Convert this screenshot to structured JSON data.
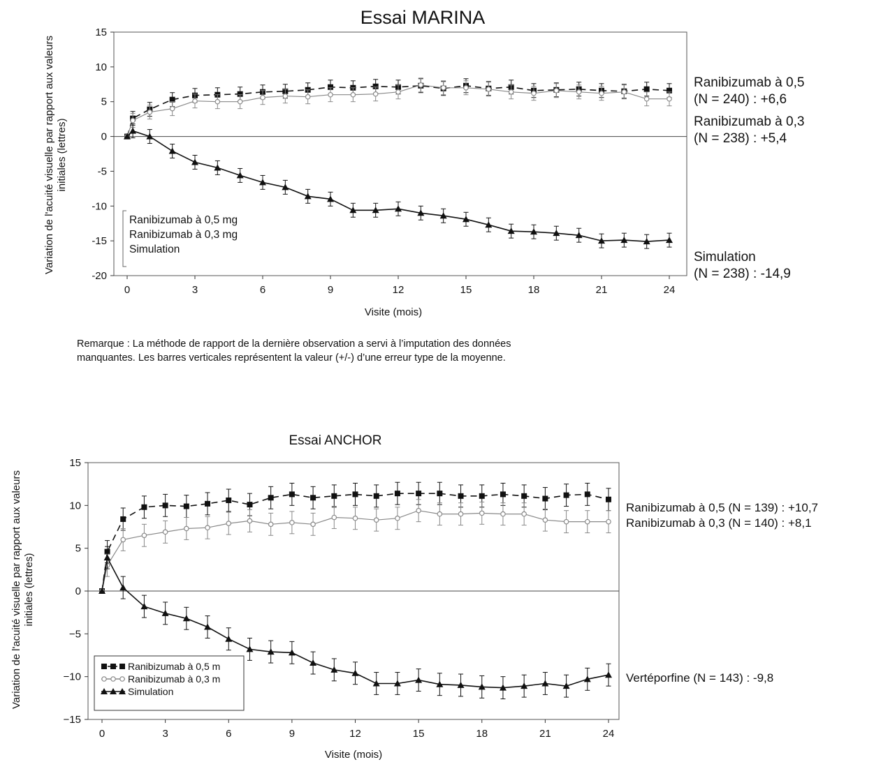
{
  "chart_data": [
    {
      "type": "line",
      "title": "Essai MARINA",
      "xlabel": "Visite (mois)",
      "ylabel": "Variation de l'acuité visuelle par rapport aux valeurs initiales (lettres)",
      "xlim": [
        0,
        24
      ],
      "ylim": [
        -20,
        15
      ],
      "xticks": [
        0,
        3,
        6,
        9,
        12,
        15,
        18,
        21,
        24
      ],
      "yticks": [
        15,
        10,
        5,
        0,
        -5,
        -10,
        -15,
        -20
      ],
      "legend_position": "bottom-left",
      "legend": [
        "Ranibizumab à 0,5 mg",
        "Ranibizumab à 0,3 mg",
        "Simulation"
      ],
      "x": [
        0,
        0.25,
        1,
        2,
        3,
        4,
        5,
        6,
        7,
        8,
        9,
        10,
        11,
        12,
        13,
        14,
        15,
        16,
        17,
        18,
        19,
        20,
        21,
        22,
        23,
        24
      ],
      "error_bar": 1.0,
      "series": [
        {
          "name": "Ranibizumab à 0,5 mg",
          "style": "dash-square",
          "color": "#111111",
          "values": [
            0,
            2.6,
            3.9,
            5.3,
            5.9,
            6.0,
            6.1,
            6.4,
            6.5,
            6.7,
            7.1,
            7.0,
            7.2,
            7.1,
            7.3,
            6.9,
            7.3,
            6.9,
            7.1,
            6.6,
            6.7,
            6.8,
            6.6,
            6.5,
            6.8,
            6.6
          ]
        },
        {
          "name": "Ranibizumab à 0,3 mg",
          "style": "solid-diamond",
          "color": "#888888",
          "values": [
            0,
            2.3,
            3.5,
            4.0,
            5.1,
            5.0,
            5.0,
            5.6,
            5.8,
            5.7,
            6.0,
            6.0,
            6.1,
            6.4,
            7.4,
            7.0,
            7.0,
            6.8,
            6.4,
            6.2,
            6.6,
            6.4,
            6.2,
            6.4,
            5.4,
            5.4
          ]
        },
        {
          "name": "Simulation",
          "style": "solid-triangle",
          "color": "#111111",
          "values": [
            0,
            0.8,
            0,
            -2.1,
            -3.7,
            -4.5,
            -5.6,
            -6.6,
            -7.3,
            -8.6,
            -9.0,
            -10.6,
            -10.6,
            -10.4,
            -11.0,
            -11.4,
            -11.9,
            -12.7,
            -13.6,
            -13.7,
            -13.9,
            -14.2,
            -15.0,
            -14.9,
            -15.1,
            -14.9
          ]
        }
      ],
      "annotations": [
        {
          "text": "Ranibizumab à 0,5",
          "line2": "(N = 240) : +6,6"
        },
        {
          "text": "Ranibizumab à 0,3",
          "line2": "(N = 238) : +5,4"
        },
        {
          "text": "Simulation",
          "line2": "(N = 238) : -14,9"
        }
      ]
    },
    {
      "type": "line",
      "title": "Essai ANCHOR",
      "xlabel": "Visite (mois)",
      "ylabel": "Variation de l'acuité visuelle par rapport aux valeurs initiales (lettres)",
      "xlim": [
        0,
        24
      ],
      "ylim": [
        -15,
        15
      ],
      "xticks": [
        0,
        3,
        6,
        9,
        12,
        15,
        18,
        21,
        24
      ],
      "yticks": [
        15,
        10,
        5,
        0,
        -5,
        -10,
        -15
      ],
      "legend_position": "bottom-left",
      "legend": [
        "Ranibizumab à 0,5 m",
        "Ranibizumab à 0,3 m",
        "Simulation"
      ],
      "x": [
        0,
        0.25,
        1,
        2,
        3,
        4,
        5,
        6,
        7,
        8,
        9,
        10,
        11,
        12,
        13,
        14,
        15,
        16,
        17,
        18,
        19,
        20,
        21,
        22,
        23,
        24
      ],
      "error_bar": 1.3,
      "series": [
        {
          "name": "Ranibizumab à 0,5 m",
          "style": "dash-square",
          "color": "#111111",
          "values": [
            0,
            4.6,
            8.4,
            9.8,
            10.0,
            9.9,
            10.2,
            10.6,
            10.1,
            10.9,
            11.3,
            10.9,
            11.1,
            11.3,
            11.1,
            11.4,
            11.4,
            11.4,
            11.1,
            11.1,
            11.3,
            11.1,
            10.8,
            11.2,
            11.3,
            10.7
          ]
        },
        {
          "name": "Ranibizumab à 0,3 m",
          "style": "solid-diamond",
          "color": "#888888",
          "values": [
            0,
            3.0,
            6.0,
            6.5,
            6.9,
            7.3,
            7.4,
            7.9,
            8.2,
            7.8,
            8.0,
            7.8,
            8.6,
            8.5,
            8.3,
            8.5,
            9.4,
            9.0,
            9.0,
            9.1,
            9.0,
            9.0,
            8.3,
            8.1,
            8.1,
            8.1
          ]
        },
        {
          "name": "Simulation",
          "style": "solid-triangle",
          "color": "#111111",
          "values": [
            0,
            3.9,
            0.4,
            -1.8,
            -2.6,
            -3.2,
            -4.2,
            -5.6,
            -6.8,
            -7.1,
            -7.2,
            -8.4,
            -9.2,
            -9.6,
            -10.8,
            -10.8,
            -10.4,
            -10.9,
            -11.0,
            -11.2,
            -11.3,
            -11.1,
            -10.8,
            -11.1,
            -10.3,
            -9.8
          ]
        }
      ],
      "annotations": [
        {
          "text": "Ranibizumab à 0,5 (N = 139) : +10,7"
        },
        {
          "text": "Ranibizumab à 0,3 (N = 140) : +8,1"
        },
        {
          "text": "Vertéporfine (N = 143) : -9,8"
        }
      ]
    }
  ],
  "note": {
    "line1": "Remarque : La méthode de rapport de la dernière observation a servi à l’imputation des données",
    "line2": "manquantes. Les barres verticales représentent la valeur (+/-) d’une erreur type de la moyenne."
  }
}
